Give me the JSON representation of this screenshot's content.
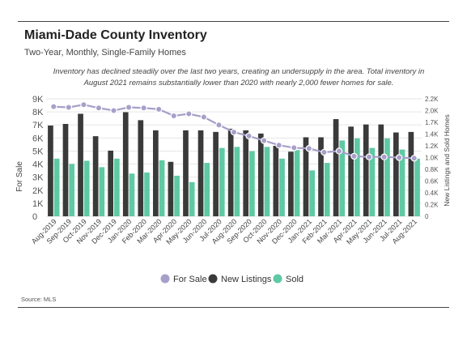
{
  "header": {
    "title": "Miami-Dade County Inventory",
    "subtitle": "Two-Year, Monthly, Single-Family Homes",
    "annotation": "Inventory has declined steadily over the last two years, creating an undersupply in the area. Total inventory in August 2021 remains substantially lower than 2020 with nearly 2,000 fewer homes for sale."
  },
  "footer": {
    "source": "Source: MLS"
  },
  "colors": {
    "for_sale": "#a89fc9",
    "new_listings": "#3a3a3a",
    "sold": "#5fc9a3",
    "grid": "#e6e6e6"
  },
  "chart_data": {
    "type": "bar",
    "title": "Miami-Dade County Inventory",
    "ylabel": "For Sale",
    "y2label": "New Listings and Sold Homes",
    "ylim": [
      0,
      9000
    ],
    "y2lim": [
      0,
      2200
    ],
    "yticks": [
      "0",
      "1K",
      "2K",
      "3K",
      "4K",
      "5K",
      "6K",
      "7K",
      "8K",
      "9K"
    ],
    "y2ticks": [
      "0",
      "0.2K",
      "0.4K",
      "0.6K",
      "0.8K",
      "1.0K",
      "1.2K",
      "1.4K",
      "1.7K",
      "2.0K",
      "2.2K"
    ],
    "categories": [
      "Aug-2019",
      "Sep-2019",
      "Oct-2019",
      "Nov-2019",
      "Dec-2019",
      "Jan-2020",
      "Feb-2020",
      "Mar-2020",
      "Apr-2020",
      "May-2020",
      "Jun-2020",
      "Jul-2020",
      "Aug-2020",
      "Sep-2020",
      "Oct-2020",
      "Nov-2020",
      "Dec-2020",
      "Jan-2021",
      "Feb-2021",
      "Mar-2021",
      "Apr-2021",
      "May-2021",
      "Jun-2021",
      "Jul-2021",
      "Aug-2021"
    ],
    "legend_position": "bottom",
    "series": [
      {
        "name": "For Sale",
        "kind": "line",
        "axis": "left",
        "values": [
          8400,
          8350,
          8550,
          8300,
          8100,
          8350,
          8300,
          8200,
          7700,
          7850,
          7600,
          7000,
          6450,
          6150,
          5800,
          5450,
          5250,
          5200,
          4900,
          5000,
          4600,
          4550,
          4550,
          4500,
          4450
        ]
      },
      {
        "name": "New Listings",
        "kind": "bar",
        "axis": "right",
        "values": [
          1700,
          1730,
          1920,
          1500,
          1230,
          1950,
          1800,
          1610,
          1020,
          1610,
          1610,
          1580,
          1640,
          1610,
          1550,
          1320,
          1210,
          1480,
          1480,
          1820,
          1680,
          1720,
          1720,
          1570,
          1580
        ]
      },
      {
        "name": "Sold",
        "kind": "bar",
        "axis": "right",
        "values": [
          1080,
          980,
          1040,
          920,
          1080,
          800,
          820,
          1050,
          760,
          640,
          1000,
          1280,
          1300,
          1220,
          1300,
          1080,
          1240,
          860,
          1000,
          1420,
          1460,
          1280,
          1460,
          1250,
          1080
        ]
      }
    ]
  }
}
